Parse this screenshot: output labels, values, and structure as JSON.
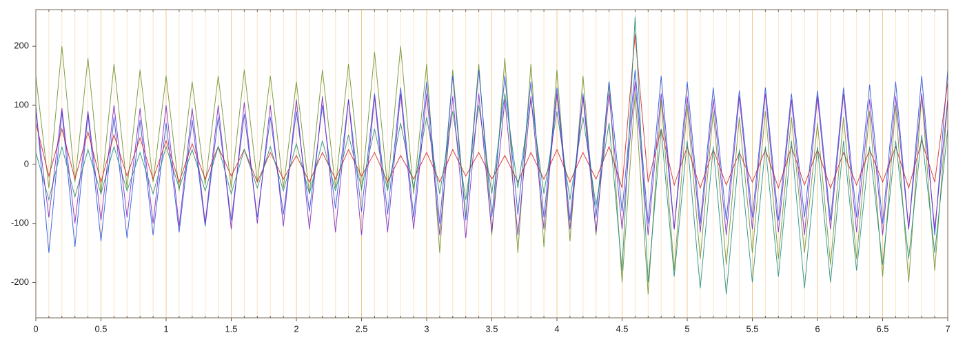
{
  "chart_data": {
    "type": "line",
    "x": [
      0,
      0.1,
      0.2,
      0.3,
      0.4,
      0.5,
      0.6,
      0.7,
      0.8,
      0.9,
      1,
      1.1,
      1.2,
      1.3,
      1.4,
      1.5,
      1.6,
      1.7,
      1.8,
      1.9,
      2,
      2.1,
      2.2,
      2.3,
      2.4,
      2.5,
      2.6,
      2.7,
      2.8,
      2.9,
      3,
      3.1,
      3.2,
      3.3,
      3.4,
      3.5,
      3.6,
      3.7,
      3.8,
      3.9,
      4,
      4.1,
      4.2,
      4.3,
      4.4,
      4.5,
      4.6,
      4.7,
      4.8,
      4.9,
      5,
      5.1,
      5.2,
      5.3,
      5.4,
      5.5,
      5.6,
      5.7,
      5.8,
      5.9,
      6,
      6.1,
      6.2,
      6.3,
      6.4,
      6.5,
      6.6,
      6.7,
      6.8,
      6.9,
      7
    ],
    "series": [
      {
        "color": "#6b8e23",
        "values": [
          150,
          -40,
          200,
          -30,
          180,
          -50,
          170,
          -40,
          160,
          -30,
          150,
          -45,
          140,
          -35,
          150,
          -40,
          160,
          -30,
          150,
          -40,
          140,
          -50,
          160,
          -40,
          170,
          -45,
          190,
          -40,
          200,
          -50,
          170,
          -150,
          160,
          -90,
          170,
          -120,
          180,
          -150,
          170,
          -140,
          160,
          -130,
          150,
          -120,
          140,
          -200,
          120,
          -220,
          110,
          -180,
          100,
          -160,
          90,
          -170,
          80,
          -150,
          90,
          -160,
          80,
          -150,
          70,
          -170,
          80,
          -160,
          90,
          -190,
          100,
          -200,
          120,
          -180,
          110
        ]
      },
      {
        "color": "#2050e0",
        "values": [
          100,
          -150,
          90,
          -140,
          85,
          -130,
          80,
          -125,
          75,
          -120,
          70,
          -115,
          75,
          -105,
          80,
          -95,
          85,
          -90,
          80,
          -85,
          90,
          -80,
          100,
          -75,
          110,
          -80,
          120,
          -85,
          130,
          -90,
          140,
          -100,
          150,
          -95,
          160,
          -90,
          150,
          -85,
          140,
          -90,
          130,
          -95,
          120,
          -90,
          140,
          -80,
          160,
          -100,
          150,
          -110,
          140,
          -100,
          130,
          -95,
          125,
          -90,
          130,
          -95,
          120,
          -90,
          125,
          -95,
          130,
          -90,
          135,
          -100,
          140,
          -110,
          150,
          -120,
          160
        ]
      },
      {
        "color": "#d02020",
        "values": [
          70,
          -20,
          60,
          -25,
          55,
          -30,
          50,
          -20,
          45,
          -25,
          40,
          -30,
          35,
          -25,
          30,
          -20,
          25,
          -30,
          20,
          -25,
          15,
          -30,
          20,
          -25,
          25,
          -20,
          20,
          -30,
          15,
          -25,
          20,
          -30,
          25,
          -20,
          20,
          -25,
          15,
          -30,
          20,
          -25,
          25,
          -30,
          20,
          -25,
          30,
          -40,
          220,
          -30,
          60,
          -35,
          30,
          -40,
          25,
          -35,
          20,
          -30,
          25,
          -40,
          30,
          -35,
          25,
          -40,
          20,
          -35,
          25,
          -30,
          30,
          -40,
          40,
          -30,
          140
        ]
      },
      {
        "color": "#1a8a7a",
        "values": [
          20,
          -60,
          30,
          -55,
          25,
          -50,
          30,
          -45,
          20,
          -50,
          30,
          -40,
          25,
          -45,
          30,
          -50,
          25,
          -40,
          30,
          -45,
          35,
          -50,
          40,
          -45,
          50,
          -40,
          60,
          -45,
          70,
          -40,
          80,
          -50,
          90,
          -60,
          100,
          -50,
          120,
          -40,
          110,
          -50,
          90,
          -60,
          80,
          -70,
          70,
          -180,
          250,
          -200,
          60,
          -190,
          40,
          -210,
          30,
          -220,
          25,
          -200,
          30,
          -190,
          40,
          -210,
          30,
          -200,
          40,
          -180,
          30,
          -170,
          40,
          -160,
          50,
          -150,
          60
        ]
      },
      {
        "color": "#7a20c0",
        "values": [
          90,
          -90,
          95,
          -100,
          90,
          -95,
          100,
          -90,
          95,
          -100,
          100,
          -105,
          95,
          -100,
          100,
          -110,
          105,
          -100,
          100,
          -105,
          110,
          -110,
          115,
          -115,
          110,
          -120,
          115,
          -115,
          120,
          -110,
          120,
          -120,
          115,
          -125,
          120,
          -115,
          110,
          -120,
          115,
          -110,
          120,
          -110,
          115,
          -115,
          120,
          -110,
          140,
          -120,
          120,
          -110,
          115,
          -115,
          110,
          -120,
          115,
          -110,
          120,
          -115,
          110,
          -120,
          115,
          -110,
          120,
          -115,
          110,
          -120,
          115,
          -110,
          120,
          -110,
          110
        ]
      }
    ],
    "xlim": [
      0,
      7
    ],
    "xticks": [
      0,
      0.5,
      1,
      1.5,
      2,
      2.5,
      3,
      3.5,
      4,
      4.5,
      5,
      5.5,
      6,
      6.5,
      7
    ],
    "ylim": [
      -260,
      262
    ],
    "yticks": [
      -200,
      -100,
      0,
      100,
      200
    ],
    "grid": true
  }
}
